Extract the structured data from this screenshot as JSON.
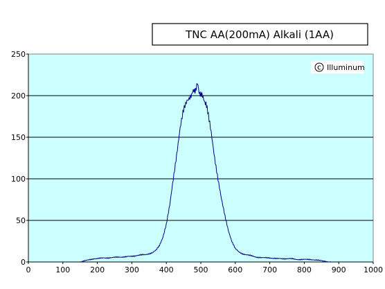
{
  "chart_data": {
    "type": "line",
    "title": "TNC AA(200mA) Alkali (1AA)",
    "xlabel": "",
    "ylabel": "",
    "xlim": [
      0,
      1000
    ],
    "ylim": [
      0,
      250
    ],
    "xticks": [
      0,
      100,
      200,
      300,
      400,
      500,
      600,
      700,
      800,
      900,
      1000
    ],
    "yticks": [
      0,
      50,
      100,
      150,
      200,
      250
    ],
    "grid": "horizontal",
    "legend": "none",
    "watermark": "Illuminum",
    "watermark_symbol": "©",
    "colors": {
      "plot_background": "#ccffff",
      "line": "#000080",
      "grid": "#000000"
    },
    "series": [
      {
        "x": [
          150,
          160,
          170,
          180,
          190,
          200,
          220,
          240,
          260,
          280,
          300,
          320,
          340,
          360,
          370,
          380,
          390,
          400,
          410,
          420,
          430,
          440,
          450,
          460,
          470,
          475,
          480,
          485,
          490,
          495,
          500,
          505,
          510,
          515,
          520,
          530,
          540,
          550,
          560,
          570,
          580,
          590,
          600,
          610,
          620,
          630,
          640,
          650,
          660,
          680,
          700,
          720,
          740,
          760,
          780,
          800,
          820,
          840,
          860,
          870,
          880
        ],
        "y": [
          0,
          1,
          2,
          3,
          4,
          4,
          5,
          5,
          6,
          6,
          7,
          8,
          9,
          11,
          14,
          20,
          30,
          45,
          68,
          100,
          130,
          160,
          182,
          195,
          200,
          203,
          205,
          208,
          214,
          204,
          203,
          198,
          195,
          190,
          180,
          155,
          126,
          100,
          75,
          55,
          38,
          25,
          16,
          12,
          10,
          9,
          8,
          7,
          6,
          5,
          5,
          4,
          4,
          4,
          3,
          3,
          3,
          2,
          1,
          0,
          0
        ]
      }
    ]
  }
}
